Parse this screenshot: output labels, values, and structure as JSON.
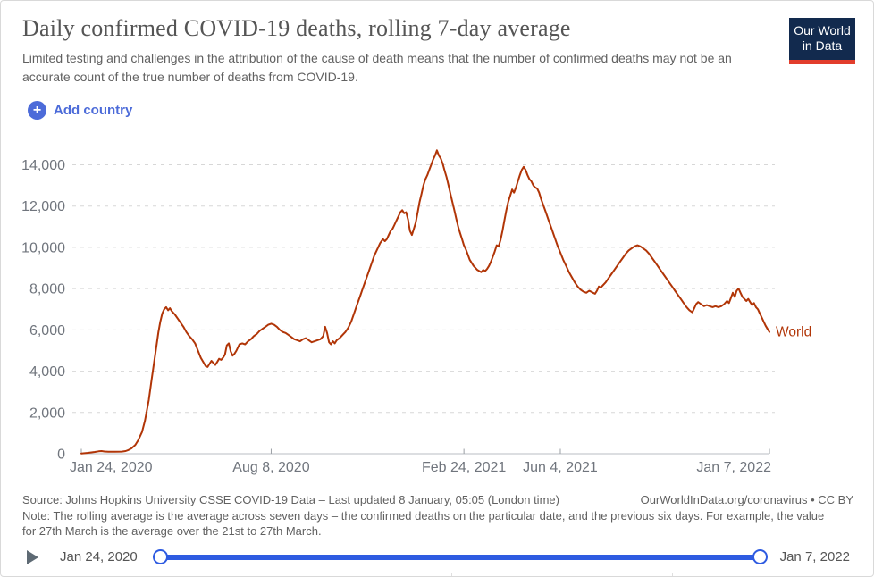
{
  "header": {
    "title": "Daily confirmed COVID-19 deaths, rolling 7-day average",
    "subtitle": "Limited testing and challenges in the attribution of the cause of death means that the number of confirmed deaths may not be an accurate count of the true number of deaths from COVID-19.",
    "logo": {
      "line1": "Our World",
      "line2": "in Data",
      "bg_color": "#122A4E",
      "bar_color": "#E23D2C"
    }
  },
  "controls": {
    "add_country_label": "Add country",
    "accent_color": "#4C6BD9"
  },
  "chart_data": {
    "type": "line",
    "title": "Daily confirmed COVID-19 deaths, rolling 7-day average",
    "xlabel": "",
    "ylabel": "",
    "grid": "horizontal dashed",
    "legend_position": "end-of-line label",
    "ylim": [
      0,
      14000
    ],
    "y_ticks": [
      0,
      2000,
      4000,
      6000,
      8000,
      10000,
      12000,
      14000
    ],
    "y_tick_labels": [
      "0",
      "2,000",
      "4,000",
      "6,000",
      "8,000",
      "10,000",
      "12,000",
      "14,000"
    ],
    "x_start_date": "2020-01-24",
    "x_ticks": [
      {
        "label": "Jan 24, 2020",
        "day": 0,
        "align": "start"
      },
      {
        "label": "Aug 8, 2020",
        "day": 197,
        "align": "middle"
      },
      {
        "label": "Feb 24, 2021",
        "day": 397,
        "align": "middle"
      },
      {
        "label": "Jun 4, 2021",
        "day": 497,
        "align": "middle"
      },
      {
        "label": "Jan 7, 2022",
        "day": 714,
        "align": "end"
      }
    ],
    "series": [
      {
        "name": "World",
        "color": "#B13507",
        "points_day_value": [
          [
            0,
            15
          ],
          [
            7,
            45
          ],
          [
            14,
            85
          ],
          [
            18,
            115
          ],
          [
            21,
            130
          ],
          [
            24,
            110
          ],
          [
            28,
            95
          ],
          [
            35,
            95
          ],
          [
            42,
            105
          ],
          [
            46,
            130
          ],
          [
            49,
            180
          ],
          [
            52,
            260
          ],
          [
            56,
            430
          ],
          [
            59,
            650
          ],
          [
            63,
            1050
          ],
          [
            66,
            1600
          ],
          [
            70,
            2600
          ],
          [
            73,
            3600
          ],
          [
            77,
            4900
          ],
          [
            80,
            5900
          ],
          [
            82,
            6400
          ],
          [
            84,
            6800
          ],
          [
            86,
            7000
          ],
          [
            88,
            7100
          ],
          [
            90,
            6950
          ],
          [
            92,
            7050
          ],
          [
            94,
            6900
          ],
          [
            97,
            6750
          ],
          [
            100,
            6550
          ],
          [
            103,
            6350
          ],
          [
            106,
            6150
          ],
          [
            109,
            5900
          ],
          [
            112,
            5700
          ],
          [
            115,
            5550
          ],
          [
            118,
            5350
          ],
          [
            121,
            5000
          ],
          [
            124,
            4650
          ],
          [
            127,
            4400
          ],
          [
            129,
            4250
          ],
          [
            131,
            4200
          ],
          [
            133,
            4350
          ],
          [
            135,
            4500
          ],
          [
            137,
            4400
          ],
          [
            139,
            4300
          ],
          [
            141,
            4450
          ],
          [
            143,
            4600
          ],
          [
            145,
            4550
          ],
          [
            147,
            4650
          ],
          [
            149,
            4800
          ],
          [
            151,
            5250
          ],
          [
            153,
            5350
          ],
          [
            155,
            4950
          ],
          [
            157,
            4750
          ],
          [
            159,
            4850
          ],
          [
            161,
            5000
          ],
          [
            164,
            5300
          ],
          [
            167,
            5350
          ],
          [
            170,
            5300
          ],
          [
            173,
            5450
          ],
          [
            176,
            5550
          ],
          [
            179,
            5700
          ],
          [
            182,
            5800
          ],
          [
            185,
            5950
          ],
          [
            188,
            6050
          ],
          [
            191,
            6150
          ],
          [
            194,
            6250
          ],
          [
            197,
            6300
          ],
          [
            200,
            6250
          ],
          [
            203,
            6150
          ],
          [
            206,
            6000
          ],
          [
            209,
            5900
          ],
          [
            212,
            5850
          ],
          [
            215,
            5750
          ],
          [
            218,
            5650
          ],
          [
            221,
            5550
          ],
          [
            224,
            5500
          ],
          [
            227,
            5450
          ],
          [
            230,
            5550
          ],
          [
            233,
            5600
          ],
          [
            236,
            5500
          ],
          [
            239,
            5400
          ],
          [
            242,
            5450
          ],
          [
            245,
            5500
          ],
          [
            248,
            5550
          ],
          [
            251,
            5700
          ],
          [
            253,
            6150
          ],
          [
            255,
            5850
          ],
          [
            257,
            5400
          ],
          [
            259,
            5300
          ],
          [
            261,
            5450
          ],
          [
            263,
            5350
          ],
          [
            265,
            5500
          ],
          [
            268,
            5600
          ],
          [
            271,
            5750
          ],
          [
            274,
            5900
          ],
          [
            277,
            6100
          ],
          [
            280,
            6400
          ],
          [
            283,
            6800
          ],
          [
            286,
            7200
          ],
          [
            289,
            7600
          ],
          [
            292,
            8000
          ],
          [
            295,
            8400
          ],
          [
            298,
            8800
          ],
          [
            301,
            9200
          ],
          [
            304,
            9600
          ],
          [
            307,
            9900
          ],
          [
            310,
            10200
          ],
          [
            313,
            10400
          ],
          [
            315,
            10300
          ],
          [
            317,
            10400
          ],
          [
            319,
            10600
          ],
          [
            321,
            10800
          ],
          [
            323,
            10900
          ],
          [
            325,
            11100
          ],
          [
            327,
            11300
          ],
          [
            329,
            11500
          ],
          [
            331,
            11700
          ],
          [
            333,
            11800
          ],
          [
            335,
            11650
          ],
          [
            337,
            11700
          ],
          [
            339,
            11350
          ],
          [
            341,
            10800
          ],
          [
            343,
            10600
          ],
          [
            345,
            10900
          ],
          [
            347,
            11200
          ],
          [
            349,
            11700
          ],
          [
            351,
            12200
          ],
          [
            353,
            12600
          ],
          [
            355,
            13000
          ],
          [
            357,
            13300
          ],
          [
            359,
            13500
          ],
          [
            361,
            13750
          ],
          [
            363,
            14000
          ],
          [
            365,
            14250
          ],
          [
            367,
            14450
          ],
          [
            369,
            14700
          ],
          [
            371,
            14450
          ],
          [
            373,
            14300
          ],
          [
            375,
            14050
          ],
          [
            377,
            13700
          ],
          [
            379,
            13400
          ],
          [
            381,
            13000
          ],
          [
            383,
            12600
          ],
          [
            385,
            12200
          ],
          [
            387,
            11800
          ],
          [
            389,
            11400
          ],
          [
            391,
            11000
          ],
          [
            393,
            10700
          ],
          [
            395,
            10400
          ],
          [
            397,
            10100
          ],
          [
            399,
            9900
          ],
          [
            401,
            9650
          ],
          [
            403,
            9400
          ],
          [
            405,
            9250
          ],
          [
            407,
            9100
          ],
          [
            409,
            9000
          ],
          [
            411,
            8900
          ],
          [
            413,
            8850
          ],
          [
            415,
            8800
          ],
          [
            417,
            8900
          ],
          [
            419,
            8850
          ],
          [
            421,
            8950
          ],
          [
            423,
            9100
          ],
          [
            425,
            9300
          ],
          [
            427,
            9550
          ],
          [
            429,
            9800
          ],
          [
            431,
            10100
          ],
          [
            433,
            10050
          ],
          [
            435,
            10350
          ],
          [
            437,
            10800
          ],
          [
            439,
            11300
          ],
          [
            441,
            11800
          ],
          [
            443,
            12200
          ],
          [
            445,
            12500
          ],
          [
            447,
            12800
          ],
          [
            449,
            12650
          ],
          [
            451,
            12900
          ],
          [
            453,
            13200
          ],
          [
            455,
            13500
          ],
          [
            457,
            13750
          ],
          [
            459,
            13900
          ],
          [
            461,
            13750
          ],
          [
            463,
            13500
          ],
          [
            465,
            13300
          ],
          [
            467,
            13200
          ],
          [
            469,
            13000
          ],
          [
            471,
            12900
          ],
          [
            473,
            12850
          ],
          [
            475,
            12650
          ],
          [
            477,
            12350
          ],
          [
            482,
            11700
          ],
          [
            485,
            11300
          ],
          [
            488,
            10900
          ],
          [
            491,
            10500
          ],
          [
            494,
            10100
          ],
          [
            497,
            9750
          ],
          [
            500,
            9400
          ],
          [
            503,
            9100
          ],
          [
            506,
            8800
          ],
          [
            509,
            8550
          ],
          [
            512,
            8300
          ],
          [
            515,
            8100
          ],
          [
            518,
            7950
          ],
          [
            521,
            7850
          ],
          [
            524,
            7800
          ],
          [
            527,
            7900
          ],
          [
            529,
            7850
          ],
          [
            531,
            7800
          ],
          [
            533,
            7750
          ],
          [
            535,
            7900
          ],
          [
            537,
            8100
          ],
          [
            539,
            8050
          ],
          [
            541,
            8150
          ],
          [
            544,
            8300
          ],
          [
            547,
            8500
          ],
          [
            550,
            8700
          ],
          [
            553,
            8900
          ],
          [
            556,
            9100
          ],
          [
            559,
            9300
          ],
          [
            562,
            9500
          ],
          [
            565,
            9700
          ],
          [
            568,
            9850
          ],
          [
            571,
            9950
          ],
          [
            574,
            10050
          ],
          [
            577,
            10100
          ],
          [
            580,
            10050
          ],
          [
            583,
            9950
          ],
          [
            586,
            9850
          ],
          [
            589,
            9700
          ],
          [
            592,
            9500
          ],
          [
            595,
            9300
          ],
          [
            598,
            9100
          ],
          [
            601,
            8900
          ],
          [
            604,
            8700
          ],
          [
            607,
            8500
          ],
          [
            610,
            8300
          ],
          [
            613,
            8100
          ],
          [
            616,
            7900
          ],
          [
            619,
            7700
          ],
          [
            622,
            7500
          ],
          [
            625,
            7300
          ],
          [
            628,
            7100
          ],
          [
            631,
            6950
          ],
          [
            634,
            6850
          ],
          [
            636,
            7050
          ],
          [
            638,
            7250
          ],
          [
            640,
            7350
          ],
          [
            643,
            7250
          ],
          [
            646,
            7150
          ],
          [
            649,
            7200
          ],
          [
            652,
            7150
          ],
          [
            655,
            7100
          ],
          [
            658,
            7150
          ],
          [
            661,
            7100
          ],
          [
            664,
            7150
          ],
          [
            667,
            7250
          ],
          [
            670,
            7400
          ],
          [
            672,
            7300
          ],
          [
            674,
            7550
          ],
          [
            676,
            7800
          ],
          [
            678,
            7600
          ],
          [
            680,
            7900
          ],
          [
            682,
            8000
          ],
          [
            684,
            7800
          ],
          [
            686,
            7600
          ],
          [
            688,
            7500
          ],
          [
            690,
            7400
          ],
          [
            692,
            7500
          ],
          [
            694,
            7350
          ],
          [
            696,
            7200
          ],
          [
            698,
            7300
          ],
          [
            700,
            7100
          ],
          [
            702,
            7000
          ],
          [
            704,
            6800
          ],
          [
            706,
            6600
          ],
          [
            708,
            6400
          ],
          [
            710,
            6200
          ],
          [
            712,
            6050
          ],
          [
            714,
            5900
          ]
        ]
      }
    ]
  },
  "footer": {
    "source_left": "Source: Johns Hopkins University CSSE COVID-19 Data – Last updated 8 January, 05:05 (London time)",
    "source_right": "OurWorldInData.org/coronavirus • CC BY",
    "note": "Note: The rolling average is the average across seven days – the confirmed deaths on the particular date, and the previous six days. For example, the value for 27th March is the average over the 21st to 27th March."
  },
  "timeline": {
    "start_label": "Jan 24, 2020",
    "end_label": "Jan 7, 2022",
    "track_color": "#2E5BE1"
  }
}
